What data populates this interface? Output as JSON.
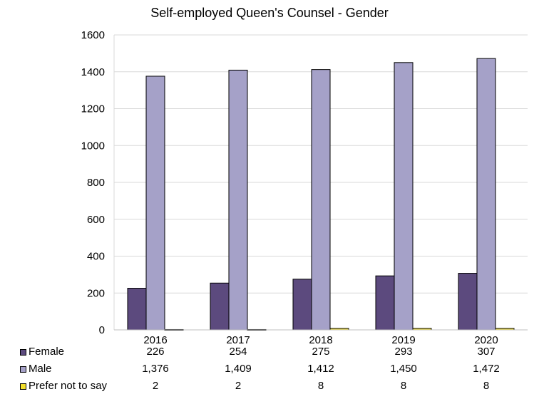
{
  "chart_data": {
    "type": "bar",
    "title": "Self-employed Queen's Counsel - Gender",
    "categories": [
      "2016",
      "2017",
      "2018",
      "2019",
      "2020"
    ],
    "ylim": [
      0,
      1600
    ],
    "yticks": [
      "0",
      "200",
      "400",
      "600",
      "800",
      "1000",
      "1200",
      "1400",
      "1600"
    ],
    "grid": true,
    "legend": "data-table",
    "series": [
      {
        "name": "Female",
        "color": "#5c4a7e",
        "values": [
          226,
          254,
          275,
          293,
          307
        ],
        "labels": [
          "226",
          "254",
          "275",
          "293",
          "307"
        ]
      },
      {
        "name": "Male",
        "color": "#a5a1c8",
        "values": [
          1376,
          1409,
          1412,
          1450,
          1472
        ],
        "labels": [
          "1,376",
          "1,409",
          "1,412",
          "1,450",
          "1,472"
        ]
      },
      {
        "name": "Prefer not to say",
        "color": "#f2df2c",
        "values": [
          2,
          2,
          8,
          8,
          8
        ],
        "labels": [
          "2",
          "2",
          "8",
          "8",
          "8"
        ]
      }
    ]
  }
}
